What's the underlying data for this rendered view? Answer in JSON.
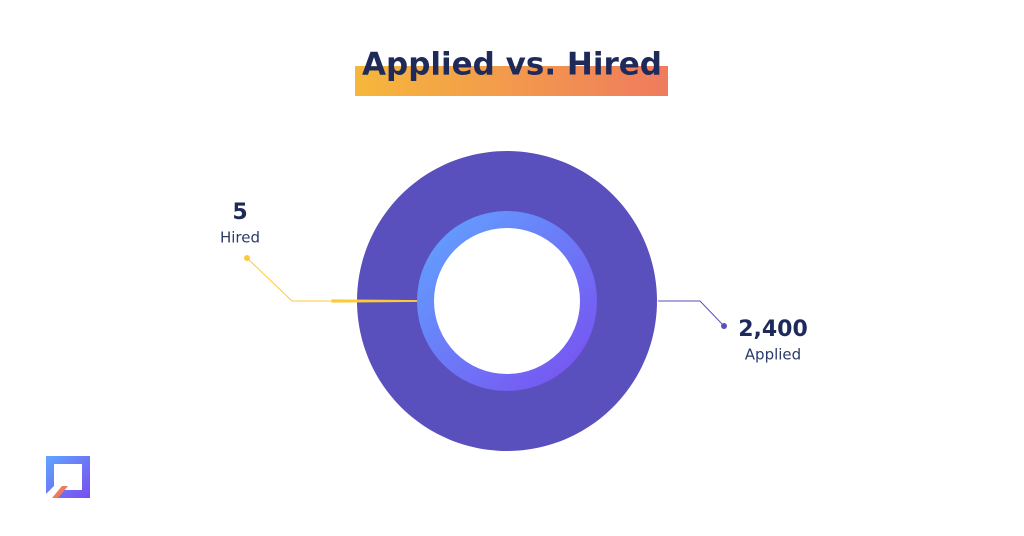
{
  "chart_data": {
    "type": "pie",
    "title": "Applied vs. Hired",
    "categories": [
      "Applied",
      "Hired"
    ],
    "values": [
      2400,
      5
    ],
    "value_labels": [
      "2,400",
      "5"
    ],
    "colors": [
      "#5a50bd",
      "#fdc93a"
    ]
  }
}
